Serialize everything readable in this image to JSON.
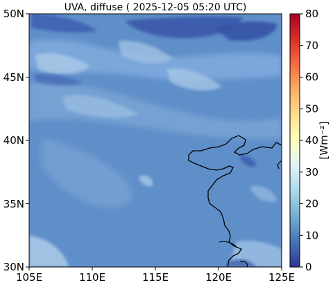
{
  "title": "UVA, diffuse ( 2025-12-05 05:20 UTC)",
  "map": {
    "x_ticks": [
      "105E",
      "110E",
      "115E",
      "120E",
      "125E"
    ],
    "y_ticks": [
      "30N",
      "35N",
      "40N",
      "45N",
      "50N"
    ],
    "lon_range": [
      105,
      125
    ],
    "lat_range": [
      30,
      50
    ],
    "field_description_colors": {
      "background": "#5f8fc9",
      "light_patch": "#89b3dc",
      "very_light_patch": "#a9c8e6",
      "dark_patch": "#3d5fb0"
    }
  },
  "colorbar": {
    "label": "[Wm⁻²]",
    "ticks": [
      "0",
      "10",
      "20",
      "30",
      "40",
      "50",
      "60",
      "70",
      "80"
    ],
    "range": [
      0,
      80
    ],
    "colormap": "RdYlBu_r"
  }
}
